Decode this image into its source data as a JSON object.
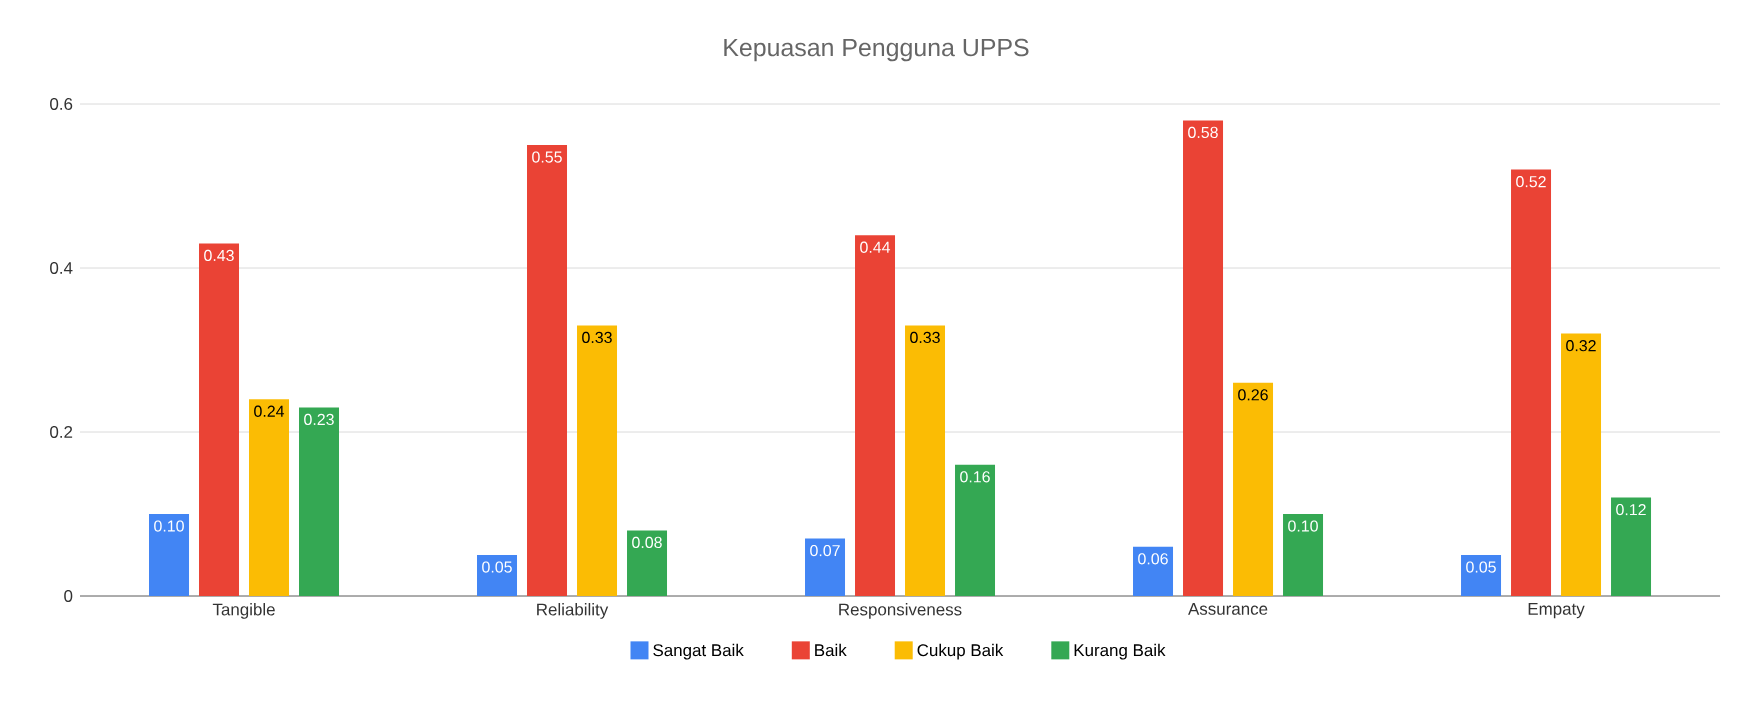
{
  "chart_data": {
    "type": "bar",
    "title": "Kepuasan Pengguna UPPS",
    "categories": [
      "Tangible",
      "Reliability",
      "Responsiveness",
      "Assurance",
      "Empaty"
    ],
    "series": [
      {
        "name": "Sangat Baik",
        "color": "#4285f4",
        "values": [
          0.1,
          0.05,
          0.07,
          0.06,
          0.05
        ],
        "value_labels": [
          "0.10",
          "0.05",
          "0.07",
          "0.06",
          "0.05"
        ]
      },
      {
        "name": "Baik",
        "color": "#ea4335",
        "values": [
          0.43,
          0.55,
          0.44,
          0.58,
          0.52
        ],
        "value_labels": [
          "0.43",
          "0.55",
          "0.44",
          "0.58",
          "0.52"
        ]
      },
      {
        "name": "Cukup Baik",
        "color": "#fbbc04",
        "values": [
          0.24,
          0.33,
          0.33,
          0.26,
          0.32
        ],
        "value_labels": [
          "0.24",
          "0.33",
          "0.33",
          "0.26",
          "0.32"
        ]
      },
      {
        "name": "Kurang Baik",
        "color": "#34a853",
        "values": [
          0.23,
          0.08,
          0.16,
          0.1,
          0.12
        ],
        "value_labels": [
          "0.23",
          "0.08",
          "0.16",
          "0.10",
          "0.12"
        ]
      }
    ],
    "ylim": [
      0,
      0.6
    ],
    "yticks": [
      {
        "value": 0,
        "label": "0"
      },
      {
        "value": 0.2,
        "label": "0.2"
      },
      {
        "value": 0.4,
        "label": "0.4"
      },
      {
        "value": 0.6,
        "label": "0.6"
      }
    ],
    "grid": "y",
    "legend": "bottom"
  }
}
